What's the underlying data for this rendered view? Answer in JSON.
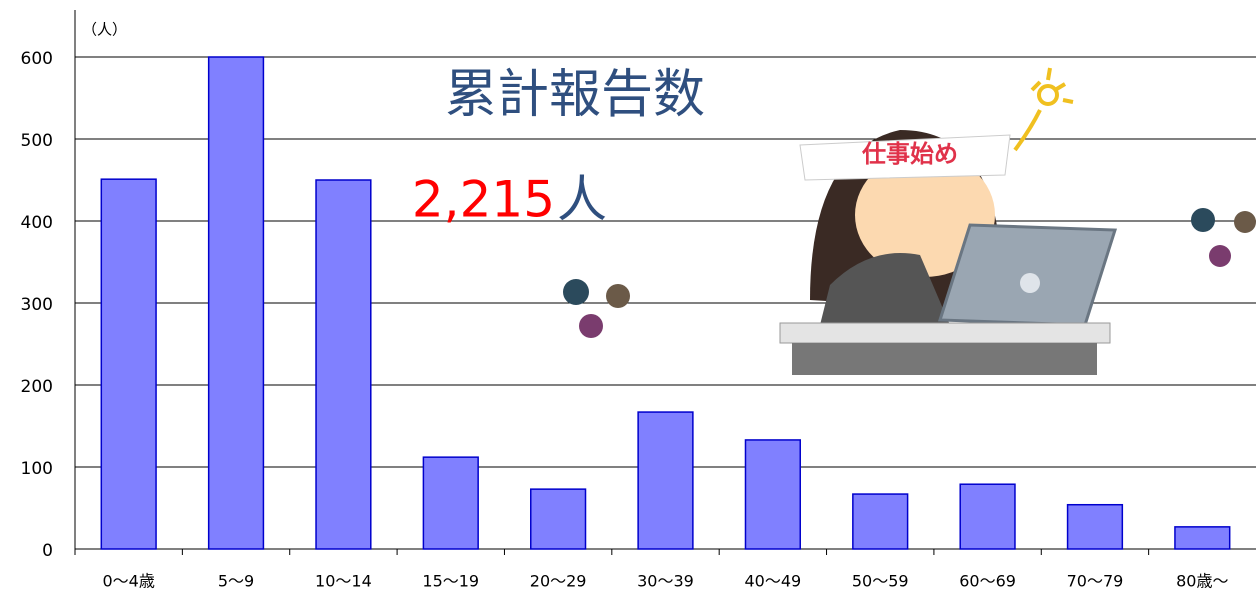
{
  "chart_data": {
    "type": "bar",
    "unit_label": "（人）",
    "annotation_title": "累計報告数",
    "total_value": "2,215",
    "total_unit": "人",
    "illustration_text": "仕事始め",
    "categories": [
      "0～4歳",
      "5～9",
      "10～14",
      "15～19",
      "20～29",
      "30～39",
      "40～49",
      "50～59",
      "60～69",
      "70～79",
      "80歳～"
    ],
    "values": [
      451,
      600,
      450,
      112,
      73,
      167,
      133,
      67,
      79,
      54,
      27
    ],
    "color": "#8080ff",
    "ylim": [
      0,
      600
    ],
    "yticks": [
      0,
      100,
      200,
      300,
      400,
      500,
      600
    ],
    "grid": true
  }
}
